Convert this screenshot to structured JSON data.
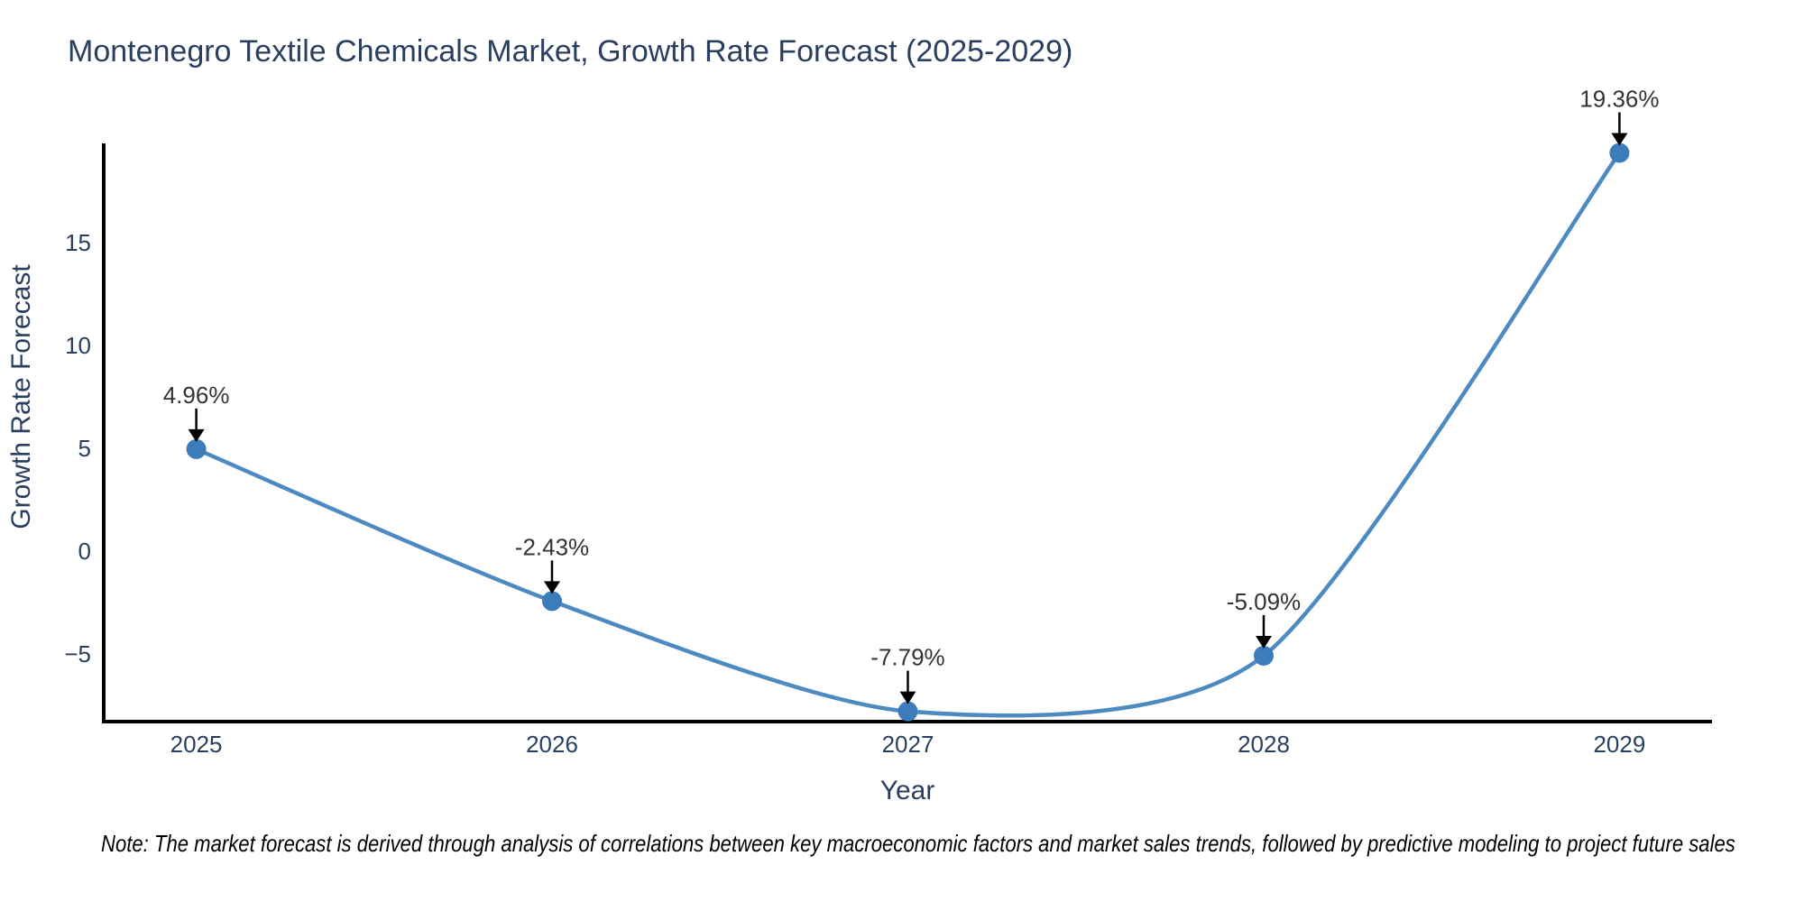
{
  "chart_data": {
    "type": "line",
    "line_shape": "spline",
    "title": "Montenegro Textile Chemicals Market, Growth Rate Forecast (2025-2029)",
    "xlabel": "Year",
    "ylabel": "Growth Rate Forecast",
    "x": [
      2025,
      2026,
      2027,
      2028,
      2029
    ],
    "series": [
      {
        "name": "Growth Rate Forecast",
        "values": [
          4.96,
          -2.43,
          -7.79,
          -5.09,
          19.36
        ]
      }
    ],
    "point_labels": [
      "4.96%",
      "-2.43%",
      "-7.79%",
      "-5.09%",
      "19.36%"
    ],
    "xtick_labels": [
      "2025",
      "2026",
      "2027",
      "2028",
      "2029"
    ],
    "ytick_values": [
      -5,
      0,
      5,
      10,
      15
    ],
    "ytick_labels": [
      "−5",
      "0",
      "5",
      "10",
      "15"
    ],
    "xlim": [
      2024.74,
      2029.26
    ],
    "ylim": [
      -8.29,
      19.82
    ],
    "grid": false,
    "legend": "none",
    "note": "Note: The market forecast is derived through analysis of correlations between key macroeconomic factors and market sales trends, followed by predictive modeling to project future sales",
    "colors": {
      "line": "#4e8ac2",
      "marker": "#3c7cba",
      "axis": "#000000",
      "tick_text": "#2a3f5f",
      "title_text": "#2a3f5f",
      "annotation_text": "#333333",
      "annotation_arrow": "#000000",
      "background": "#ffffff"
    }
  }
}
